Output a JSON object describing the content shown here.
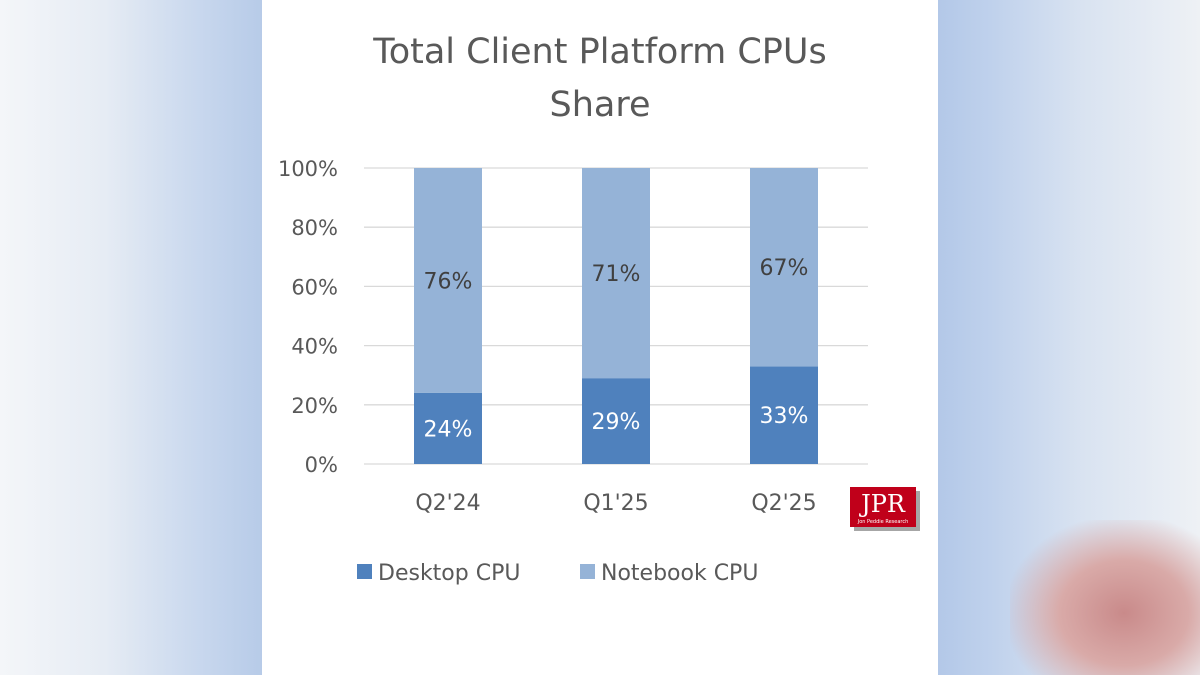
{
  "chart_data": {
    "type": "bar",
    "stacked": true,
    "title_lines": [
      "Total Client Platform CPUs",
      "Share"
    ],
    "categories": [
      "Q2'24",
      "Q1'25",
      "Q2'25"
    ],
    "series": [
      {
        "name": "Desktop CPU",
        "values": [
          24,
          29,
          33
        ],
        "labels": [
          "24%",
          "29%",
          "33%"
        ],
        "color": "#4f81bd",
        "label_color": "#ffffff"
      },
      {
        "name": "Notebook CPU",
        "values": [
          76,
          71,
          67
        ],
        "labels": [
          "76%",
          "71%",
          "67%"
        ],
        "color": "#95b3d7",
        "label_color": "#404040"
      }
    ],
    "ylim": [
      0,
      100
    ],
    "yticks": [
      0,
      20,
      40,
      60,
      80,
      100
    ],
    "ytick_labels": [
      "0%",
      "20%",
      "40%",
      "60%",
      "80%",
      "100%"
    ],
    "grid": true,
    "legend_position": "bottom"
  },
  "logo": {
    "text": "JPR",
    "subtext": "Jon Peddie Research"
  }
}
